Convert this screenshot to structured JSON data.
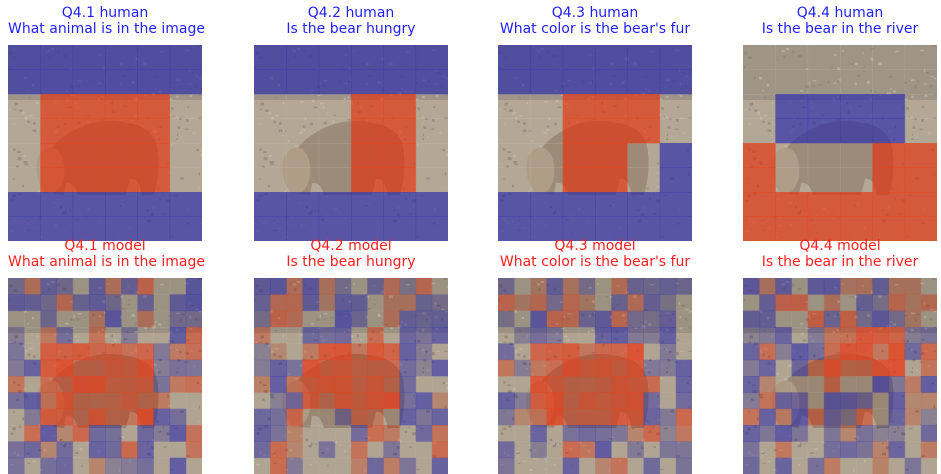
{
  "colors": {
    "human_title": "#1f1fff",
    "model_title": "#ff1f1f",
    "positive": "#e8411f",
    "negative": "#3a3ab0"
  },
  "panels": [
    {
      "id": "q41h",
      "label": "Q4.1 human",
      "question": "What animal is in the image",
      "kind": "human",
      "title_color": "#1f1fff"
    },
    {
      "id": "q42h",
      "label": "Q4.2 human",
      "question": "Is the bear hungry",
      "kind": "human",
      "title_color": "#1f1fff"
    },
    {
      "id": "q43h",
      "label": "Q4.3 human",
      "question": "What color is the bear's fur",
      "kind": "human",
      "title_color": "#1f1fff"
    },
    {
      "id": "q44h",
      "label": "Q4.4 human",
      "question": "Is the bear in the river",
      "kind": "human",
      "title_color": "#1f1fff"
    },
    {
      "id": "q41m",
      "label": "Q4.1 model",
      "question": "What animal is in the image",
      "kind": "model",
      "title_color": "#ff1f1f"
    },
    {
      "id": "q42m",
      "label": "Q4.2 model",
      "question": "Is the bear hungry",
      "kind": "model",
      "title_color": "#ff1f1f"
    },
    {
      "id": "q43m",
      "label": "Q4.3 model",
      "question": "What color is the bear's fur",
      "kind": "model",
      "title_color": "#ff1f1f"
    },
    {
      "id": "q44m",
      "label": "Q4.4 model",
      "question": "Is the bear in the river",
      "kind": "model",
      "title_color": "#ff1f1f"
    }
  ],
  "human_masks": {
    "q41h": [
      "BBBBBB",
      "BBBBBB",
      "NRRRRN",
      "NRRRRN",
      "NRRRRN",
      "NRRRRN",
      "BBBBBB",
      "BBBBBB"
    ],
    "q42h": [
      "BBBBBB",
      "BBBBBB",
      "NNNRRN",
      "NNNRRN",
      "NNNRRN",
      "NNNRRN",
      "BBBBBB",
      "BBBBBB"
    ],
    "q43h": [
      "BBBBBB",
      "BBBBBB",
      "NNRRRN",
      "NNRRRN",
      "NNRRNB",
      "NNRRNB",
      "BBBBBB",
      "BBBBBB"
    ],
    "q44h": [
      "NNNNNN",
      "NNNNNN",
      "NBBBBN",
      "NBBBBN",
      "RNNNRR",
      "RNNNRR",
      "RRRRRR",
      "RRRRRR"
    ]
  }
}
